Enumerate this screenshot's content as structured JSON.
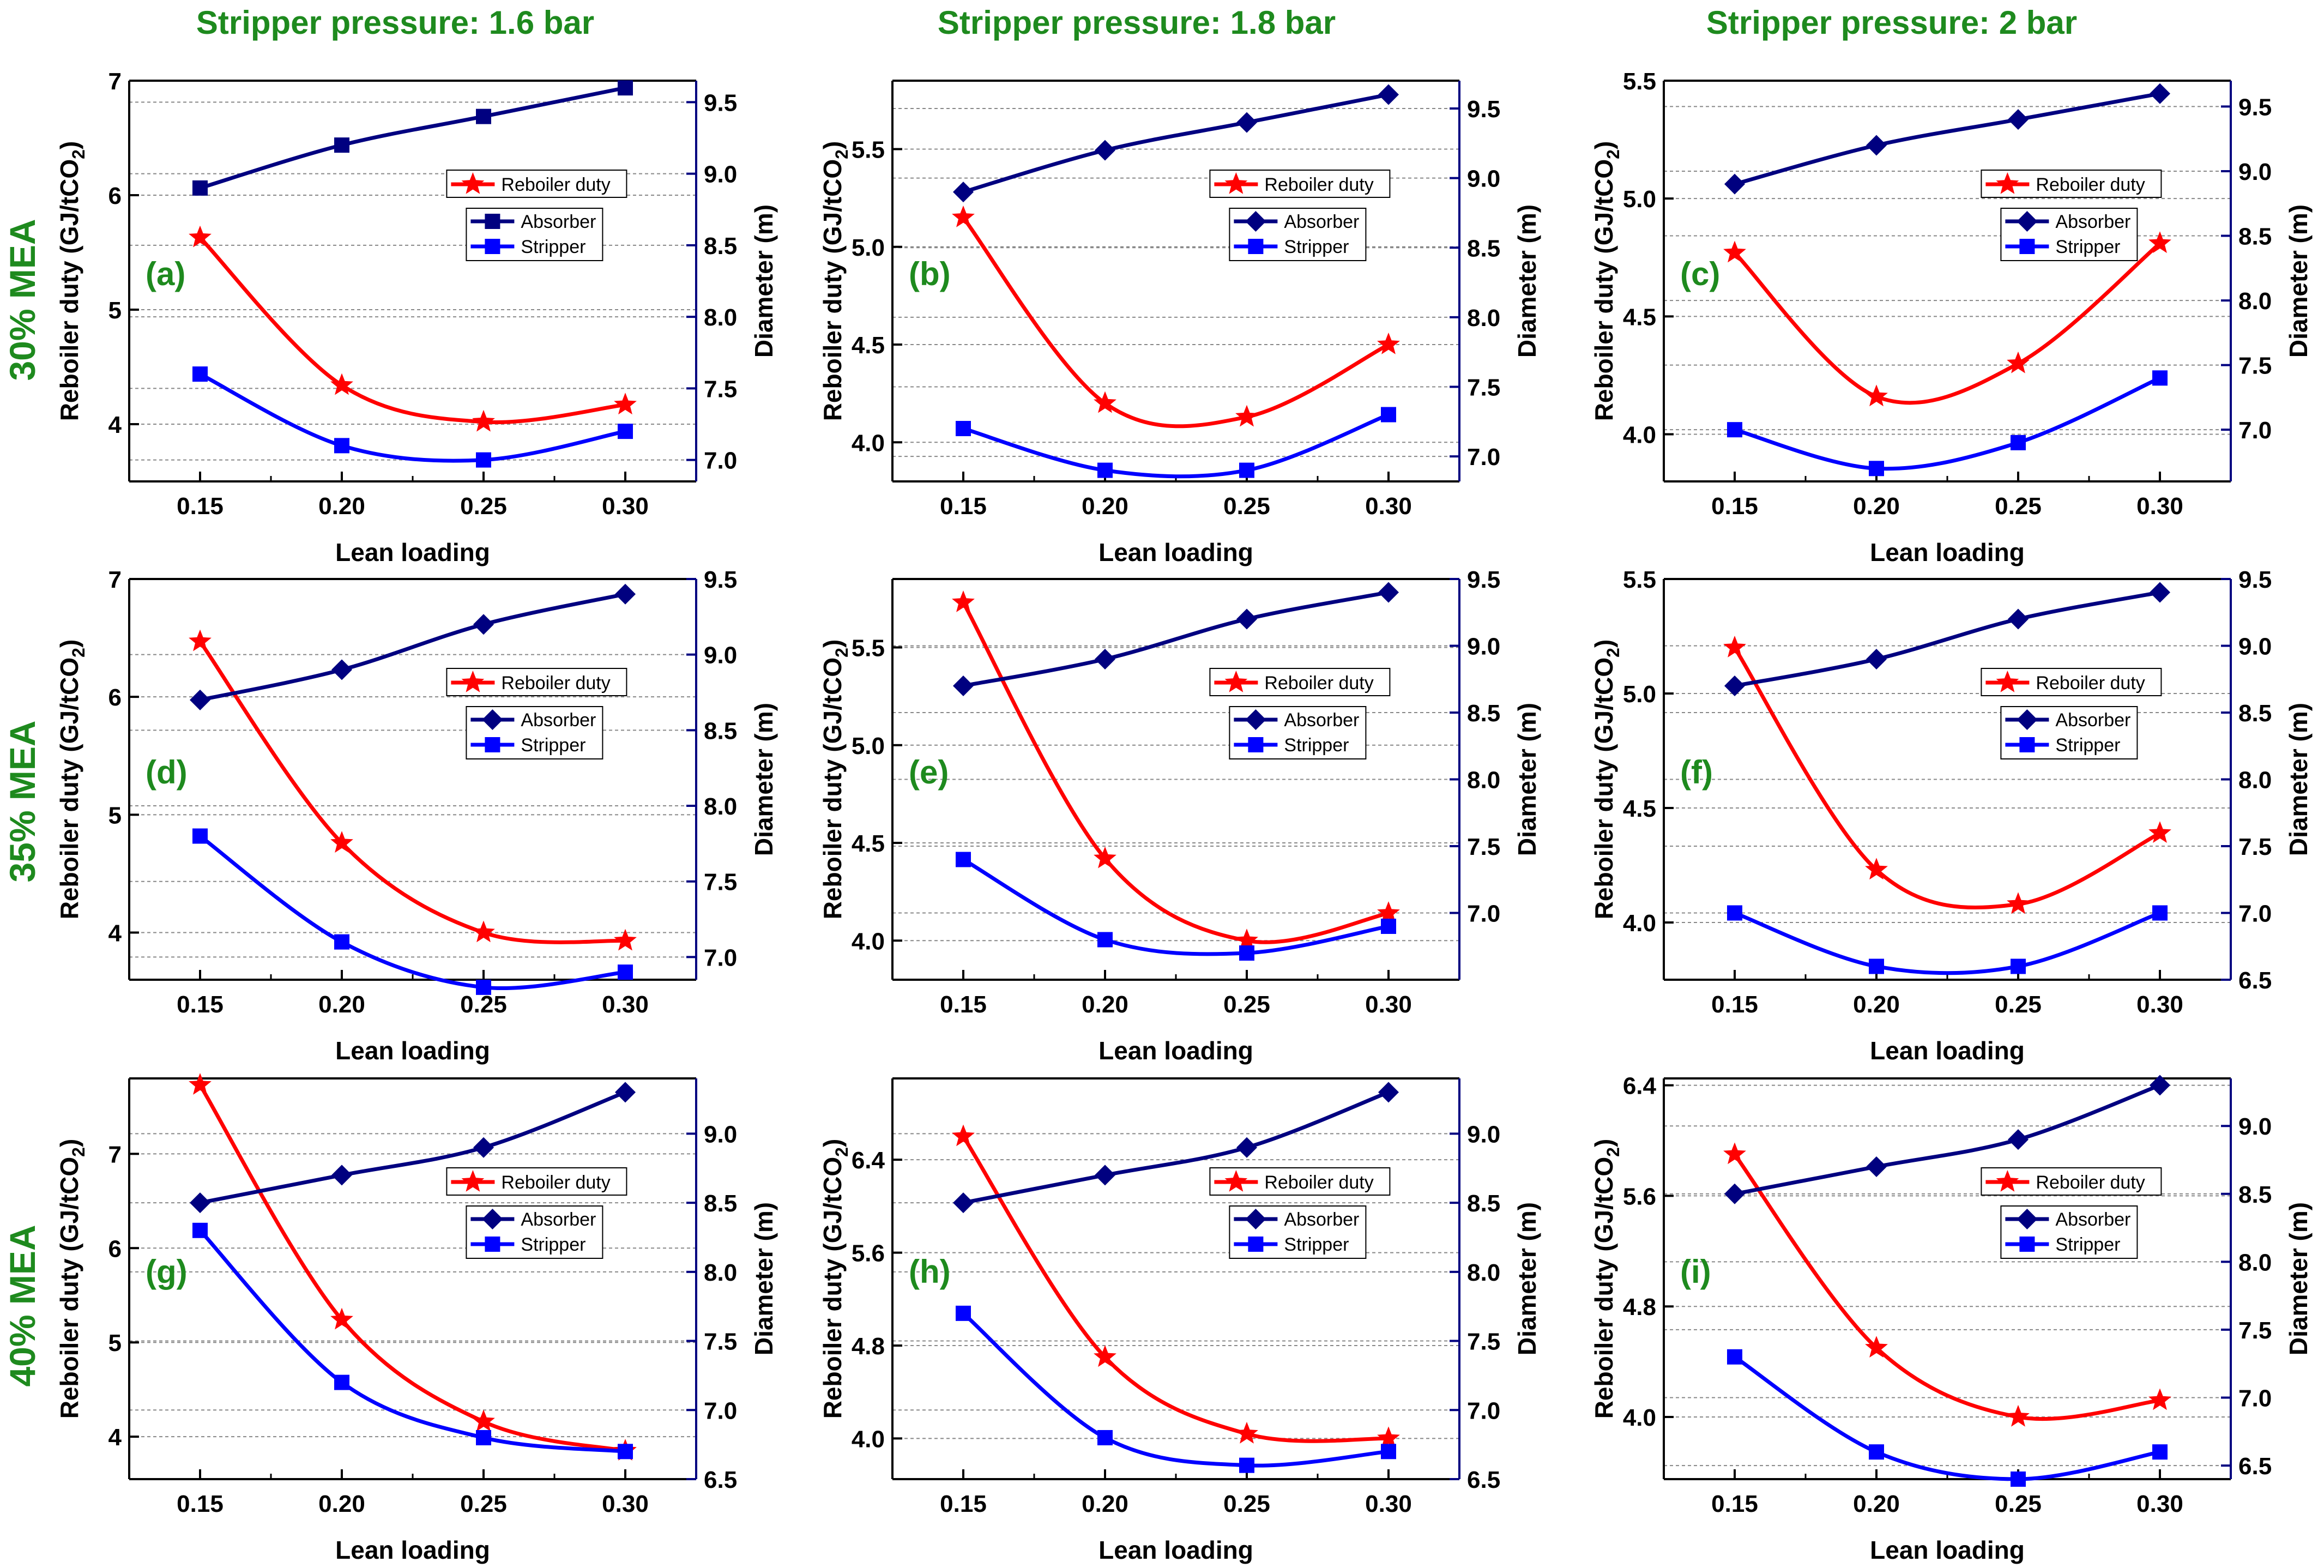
{
  "col_titles": [
    "Stripper pressure: 1.6 bar",
    "Stripper pressure: 1.8 bar",
    "Stripper pressure: 2 bar"
  ],
  "row_labels": [
    "30% MEA",
    "35% MEA",
    "40% MEA"
  ],
  "colors": {
    "reboiler": "#ff0000",
    "absorber": "#000080",
    "stripper": "#0000ff",
    "right_axis": "#000080",
    "titles": "#1e8a1e",
    "grid": "#888888"
  },
  "chart_data": [
    {
      "id": "a",
      "label": "(a)",
      "type": "line",
      "x": [
        0.15,
        0.2,
        0.25,
        0.3
      ],
      "xtick_labels": [
        "0.15",
        "0.20",
        "0.25",
        "0.30"
      ],
      "xlim": [
        0.125,
        0.325
      ],
      "xlabel": "Lean loading",
      "ylabel_left": "Reboiler duty (GJ/tCO2)",
      "ylabel_right": "Diameter (m)",
      "ylim_left": [
        3.5,
        7.0
      ],
      "yticks_left": [
        4,
        5,
        6,
        7
      ],
      "ytick_labels_left": [
        "4",
        "5",
        "6",
        "7"
      ],
      "ylim_right": [
        6.85,
        9.65
      ],
      "yticks_right": [
        7.0,
        7.5,
        8.0,
        8.5,
        9.0,
        9.5
      ],
      "ytick_labels_right": [
        "7.0",
        "7.5",
        "8.0",
        "8.5",
        "9.0",
        "9.5"
      ],
      "absorber_marker": "square",
      "series": [
        {
          "name": "Reboiler duty",
          "axis": "left",
          "values": [
            5.63,
            4.34,
            4.02,
            4.17
          ]
        },
        {
          "name": "Absorber",
          "axis": "right",
          "values": [
            8.9,
            9.2,
            9.4,
            9.6
          ]
        },
        {
          "name": "Stripper",
          "axis": "right",
          "values": [
            7.6,
            7.1,
            7.0,
            7.2
          ]
        }
      ]
    },
    {
      "id": "b",
      "label": "(b)",
      "type": "line",
      "x": [
        0.15,
        0.2,
        0.25,
        0.3
      ],
      "xtick_labels": [
        "0.15",
        "0.20",
        "0.25",
        "0.30"
      ],
      "xlim": [
        0.125,
        0.325
      ],
      "xlabel": "Lean loading",
      "ylabel_left": "Reboiler duty (GJ/tCO2)",
      "ylabel_right": "Diameter (m)",
      "ylim_left": [
        3.8,
        5.85
      ],
      "yticks_left": [
        4.0,
        4.5,
        5.0,
        5.5
      ],
      "ytick_labels_left": [
        "4.0",
        "4.5",
        "5.0",
        "5.5"
      ],
      "ylim_right": [
        6.82,
        9.7
      ],
      "yticks_right": [
        7.0,
        7.5,
        8.0,
        8.5,
        9.0,
        9.5
      ],
      "ytick_labels_right": [
        "7.0",
        "7.5",
        "8.0",
        "8.5",
        "9.0",
        "9.5"
      ],
      "absorber_marker": "diamond",
      "series": [
        {
          "name": "Reboiler duty",
          "axis": "left",
          "values": [
            5.15,
            4.2,
            4.13,
            4.5
          ]
        },
        {
          "name": "Absorber",
          "axis": "right",
          "values": [
            8.9,
            9.2,
            9.4,
            9.6
          ]
        },
        {
          "name": "Stripper",
          "axis": "right",
          "values": [
            7.2,
            6.9,
            6.9,
            7.3
          ]
        }
      ]
    },
    {
      "id": "c",
      "label": "(c)",
      "type": "line",
      "x": [
        0.15,
        0.2,
        0.25,
        0.3
      ],
      "xtick_labels": [
        "0.15",
        "0.20",
        "0.25",
        "0.30"
      ],
      "xlim": [
        0.125,
        0.325
      ],
      "xlabel": "Lean loading",
      "ylabel_left": "Reboiler duty (GJ/tCO2)",
      "ylabel_right": "Diameter (m)",
      "ylim_left": [
        3.8,
        5.5
      ],
      "yticks_left": [
        4.0,
        4.5,
        5.0,
        5.5
      ],
      "ytick_labels_left": [
        "4.0",
        "4.5",
        "5.0",
        "5.5"
      ],
      "ylim_right": [
        6.6,
        9.7
      ],
      "yticks_right": [
        7.0,
        7.5,
        8.0,
        8.5,
        9.0,
        9.5
      ],
      "ytick_labels_right": [
        "7.0",
        "7.5",
        "8.0",
        "8.5",
        "9.0",
        "9.5"
      ],
      "absorber_marker": "diamond",
      "series": [
        {
          "name": "Reboiler duty",
          "axis": "left",
          "values": [
            4.77,
            4.16,
            4.3,
            4.81
          ]
        },
        {
          "name": "Absorber",
          "axis": "right",
          "values": [
            8.9,
            9.2,
            9.4,
            9.6
          ]
        },
        {
          "name": "Stripper",
          "axis": "right",
          "values": [
            7.0,
            6.7,
            6.9,
            7.4
          ]
        }
      ]
    },
    {
      "id": "d",
      "label": "(d)",
      "type": "line",
      "x": [
        0.15,
        0.2,
        0.25,
        0.3
      ],
      "xtick_labels": [
        "0.15",
        "0.20",
        "0.25",
        "0.30"
      ],
      "xlim": [
        0.125,
        0.325
      ],
      "xlabel": "Lean loading",
      "ylabel_left": "Reboiler duty (GJ/tCO2)",
      "ylabel_right": "Diameter (m)",
      "ylim_left": [
        3.6,
        7.0
      ],
      "yticks_left": [
        4,
        5,
        6,
        7
      ],
      "ytick_labels_left": [
        "4",
        "5",
        "6",
        "7"
      ],
      "ylim_right": [
        6.85,
        9.5
      ],
      "yticks_right": [
        7.0,
        7.5,
        8.0,
        8.5,
        9.0,
        9.5
      ],
      "ytick_labels_right": [
        "7.0",
        "7.5",
        "8.0",
        "8.5",
        "9.0",
        "9.5"
      ],
      "absorber_marker": "diamond",
      "series": [
        {
          "name": "Reboiler duty",
          "axis": "left",
          "values": [
            6.47,
            4.76,
            4.0,
            3.93
          ]
        },
        {
          "name": "Absorber",
          "axis": "right",
          "values": [
            8.7,
            8.9,
            9.2,
            9.4
          ]
        },
        {
          "name": "Stripper",
          "axis": "right",
          "values": [
            7.8,
            7.1,
            6.8,
            6.9
          ]
        }
      ]
    },
    {
      "id": "e",
      "label": "(e)",
      "type": "line",
      "x": [
        0.15,
        0.2,
        0.25,
        0.3
      ],
      "xtick_labels": [
        "0.15",
        "0.20",
        "0.25",
        "0.30"
      ],
      "xlim": [
        0.125,
        0.325
      ],
      "xlabel": "Lean loading",
      "ylabel_left": "Reboiler duty (GJ/tCO2)",
      "ylabel_right": "Diameter (m)",
      "ylim_left": [
        3.8,
        5.85
      ],
      "yticks_left": [
        4.0,
        4.5,
        5.0,
        5.5
      ],
      "ytick_labels_left": [
        "4.0",
        "4.5",
        "5.0",
        "5.5"
      ],
      "ylim_right": [
        6.5,
        9.5
      ],
      "yticks_right": [
        7.0,
        7.5,
        8.0,
        8.5,
        9.0,
        9.5
      ],
      "ytick_labels_right": [
        "7.0",
        "7.5",
        "8.0",
        "8.5",
        "9.0",
        "9.5"
      ],
      "absorber_marker": "diamond",
      "series": [
        {
          "name": "Reboiler duty",
          "axis": "left",
          "values": [
            5.73,
            4.42,
            4.0,
            4.14
          ]
        },
        {
          "name": "Absorber",
          "axis": "right",
          "values": [
            8.7,
            8.9,
            9.2,
            9.4
          ]
        },
        {
          "name": "Stripper",
          "axis": "right",
          "values": [
            7.4,
            6.8,
            6.7,
            6.9
          ]
        }
      ]
    },
    {
      "id": "f",
      "label": "(f)",
      "type": "line",
      "x": [
        0.15,
        0.2,
        0.25,
        0.3
      ],
      "xtick_labels": [
        "0.15",
        "0.20",
        "0.25",
        "0.30"
      ],
      "xlim": [
        0.125,
        0.325
      ],
      "xlabel": "Lean loading",
      "ylabel_left": "Reboiler duty (GJ/tCO2)",
      "ylabel_right": "Diameter (m)",
      "ylim_left": [
        3.75,
        5.5
      ],
      "yticks_left": [
        4.0,
        4.5,
        5.0,
        5.5
      ],
      "ytick_labels_left": [
        "4.0",
        "4.5",
        "5.0",
        "5.5"
      ],
      "ylim_right": [
        6.5,
        9.5
      ],
      "yticks_right": [
        6.5,
        7.0,
        7.5,
        8.0,
        8.5,
        9.0,
        9.5
      ],
      "ytick_labels_right": [
        "6.5",
        "7.0",
        "7.5",
        "8.0",
        "8.5",
        "9.0",
        "9.5"
      ],
      "absorber_marker": "diamond",
      "series": [
        {
          "name": "Reboiler duty",
          "axis": "left",
          "values": [
            5.2,
            4.23,
            4.08,
            4.39
          ]
        },
        {
          "name": "Absorber",
          "axis": "right",
          "values": [
            8.7,
            8.9,
            9.2,
            9.4
          ]
        },
        {
          "name": "Stripper",
          "axis": "right",
          "values": [
            7.0,
            6.6,
            6.6,
            7.0
          ]
        }
      ]
    },
    {
      "id": "g",
      "label": "(g)",
      "type": "line",
      "x": [
        0.15,
        0.2,
        0.25,
        0.3
      ],
      "xtick_labels": [
        "0.15",
        "0.20",
        "0.25",
        "0.30"
      ],
      "xlim": [
        0.125,
        0.325
      ],
      "xlabel": "Lean loading",
      "ylabel_left": "Reboiler duty (GJ/tCO2)",
      "ylabel_right": "Diameter (m)",
      "ylim_left": [
        3.55,
        7.8
      ],
      "yticks_left": [
        4,
        5,
        6,
        7
      ],
      "ytick_labels_left": [
        "4",
        "5",
        "6",
        "7"
      ],
      "ylim_right": [
        6.5,
        9.4
      ],
      "yticks_right": [
        6.5,
        7.0,
        7.5,
        8.0,
        8.5,
        9.0
      ],
      "ytick_labels_right": [
        "6.5",
        "7.0",
        "7.5",
        "8.0",
        "8.5",
        "9.0"
      ],
      "absorber_marker": "diamond",
      "series": [
        {
          "name": "Reboiler duty",
          "axis": "left",
          "values": [
            7.73,
            5.24,
            4.16,
            3.85
          ]
        },
        {
          "name": "Absorber",
          "axis": "right",
          "values": [
            8.5,
            8.7,
            8.9,
            9.3
          ]
        },
        {
          "name": "Stripper",
          "axis": "right",
          "values": [
            8.3,
            7.2,
            6.8,
            6.7
          ]
        }
      ]
    },
    {
      "id": "h",
      "label": "(h)",
      "type": "line",
      "x": [
        0.15,
        0.2,
        0.25,
        0.3
      ],
      "xtick_labels": [
        "0.15",
        "0.20",
        "0.25",
        "0.30"
      ],
      "xlim": [
        0.125,
        0.325
      ],
      "xlabel": "Lean loading",
      "ylabel_left": "Reboiler duty (GJ/tCO2)",
      "ylabel_right": "Diameter (m)",
      "ylim_left": [
        3.65,
        7.1
      ],
      "yticks_left": [
        4.0,
        4.8,
        5.6,
        6.4
      ],
      "ytick_labels_left": [
        "4.0",
        "4.8",
        "5.6",
        "6.4"
      ],
      "ylim_right": [
        6.5,
        9.4
      ],
      "yticks_right": [
        6.5,
        7.0,
        7.5,
        8.0,
        8.5,
        9.0
      ],
      "ytick_labels_right": [
        "6.5",
        "7.0",
        "7.5",
        "8.0",
        "8.5",
        "9.0"
      ],
      "absorber_marker": "diamond",
      "series": [
        {
          "name": "Reboiler duty",
          "axis": "left",
          "values": [
            6.6,
            4.7,
            4.04,
            4.0
          ]
        },
        {
          "name": "Absorber",
          "axis": "right",
          "values": [
            8.5,
            8.7,
            8.9,
            9.3
          ]
        },
        {
          "name": "Stripper",
          "axis": "right",
          "values": [
            7.7,
            6.8,
            6.6,
            6.7
          ]
        }
      ]
    },
    {
      "id": "i",
      "label": "(i)",
      "type": "line",
      "x": [
        0.15,
        0.2,
        0.25,
        0.3
      ],
      "xtick_labels": [
        "0.15",
        "0.20",
        "0.25",
        "0.30"
      ],
      "xlim": [
        0.125,
        0.325
      ],
      "xlabel": "Lean loading",
      "ylabel_left": "Reboiler duty (GJ/tCO2)",
      "ylabel_right": "Diameter (m)",
      "ylim_left": [
        3.55,
        6.45
      ],
      "yticks_left": [
        4.0,
        4.8,
        5.6,
        6.4
      ],
      "ytick_labels_left": [
        "4.0",
        "4.8",
        "5.6",
        "6.4"
      ],
      "ylim_right": [
        6.4,
        9.35
      ],
      "yticks_right": [
        6.5,
        7.0,
        7.5,
        8.0,
        8.5,
        9.0
      ],
      "ytick_labels_right": [
        "6.5",
        "7.0",
        "7.5",
        "8.0",
        "8.5",
        "9.0"
      ],
      "absorber_marker": "diamond",
      "series": [
        {
          "name": "Reboiler duty",
          "axis": "left",
          "values": [
            5.9,
            4.5,
            4.0,
            4.12
          ]
        },
        {
          "name": "Absorber",
          "axis": "right",
          "values": [
            8.5,
            8.7,
            8.9,
            9.3
          ]
        },
        {
          "name": "Stripper",
          "axis": "right",
          "values": [
            7.3,
            6.6,
            6.4,
            6.6
          ]
        }
      ]
    }
  ]
}
